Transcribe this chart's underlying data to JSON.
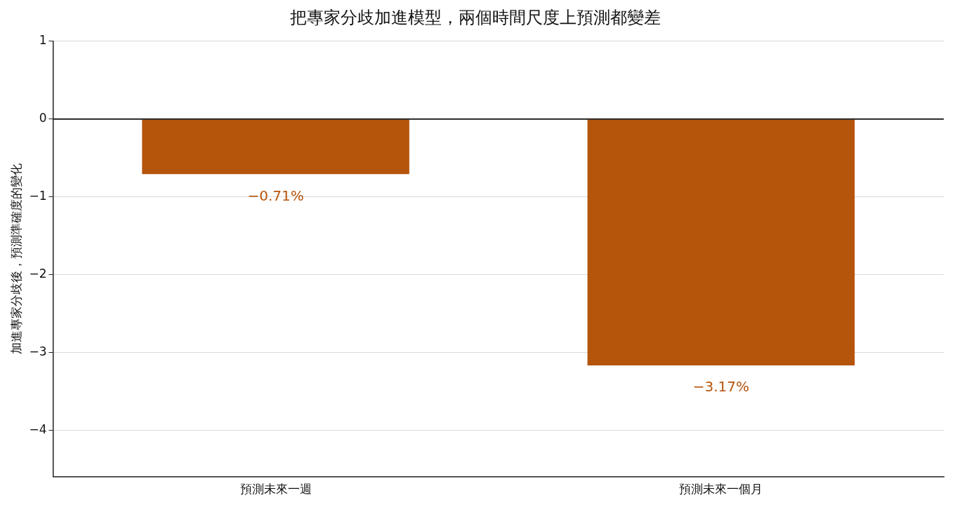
{
  "chart_data": {
    "type": "bar",
    "title": "把專家分歧加進模型，兩個時間尺度上預測都變差",
    "ylabel": "加進專家分歧後，預測準確度的變化",
    "categories": [
      "預測未來一週",
      "預測未來一個月"
    ],
    "values": [
      -0.71,
      -3.17
    ],
    "color": "#b5540b",
    "value_labels": [
      "−0.71%",
      "−3.17%"
    ],
    "ylim": [
      -4.6,
      1
    ],
    "yticks": [
      1,
      {
        "value": 0,
        "label": "0"
      },
      {
        "value": -1,
        "label": "−1"
      },
      {
        "value": -2,
        "label": "−2"
      },
      {
        "value": -3,
        "label": "−3"
      },
      {
        "value": -4,
        "label": "−4"
      }
    ],
    "ref_lines": [
      {
        "axis": "y",
        "value": 0,
        "color": "#222222"
      }
    ],
    "grid": "y",
    "legend": false
  }
}
